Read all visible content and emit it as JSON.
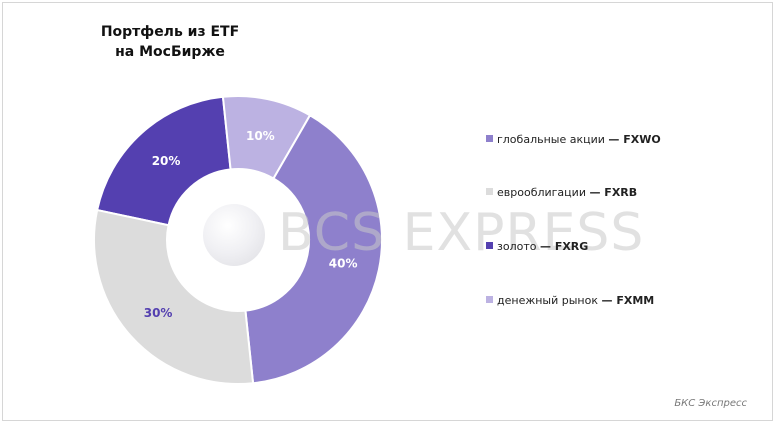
{
  "chart_data": {
    "type": "pie",
    "title": "Портфель из ETF на МосБирже",
    "title_lines": [
      "Портфель из ETF",
      "на МосБирже"
    ],
    "labels": [
      "глобальные акции — FXWO",
      "еврооблигации — FXRB",
      "золото — FXRG",
      "денежный рынок — FXMM"
    ],
    "values": [
      40,
      30,
      20,
      10
    ],
    "value_labels": [
      "40%",
      "30%",
      "20%",
      "10%"
    ],
    "colors": [
      "#8e80cc",
      "#dcdcdc",
      "#5440b0",
      "#bcb2e2"
    ],
    "label_colors": [
      "#ffffff",
      "#5440b0",
      "#ffffff",
      "#ffffff"
    ],
    "legend_position": "right"
  },
  "legend": {
    "items": [
      {
        "text": "глобальные акции",
        "ticker": "— FXWO",
        "color": "#8e80cc"
      },
      {
        "text": "еврооблигации",
        "ticker": "— FXRB",
        "color": "#dcdcdc"
      },
      {
        "text": "золото",
        "ticker": "— FXRG",
        "color": "#5440b0"
      },
      {
        "text": "денежный рынок",
        "ticker": "— FXMM",
        "color": "#bcb2e2"
      }
    ]
  },
  "watermark": {
    "text": "BCS EXPRESS"
  },
  "credit": "БКС Экспресс"
}
